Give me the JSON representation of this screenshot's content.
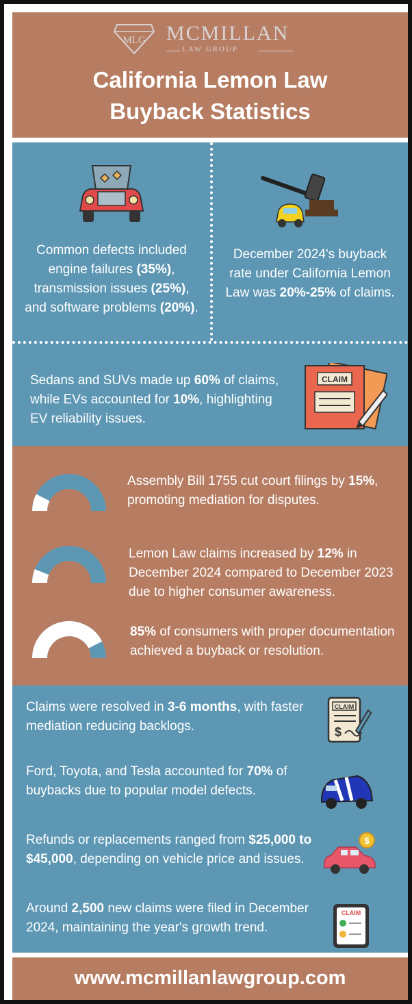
{
  "brand": {
    "monogram": "MLG",
    "name": "MCMILLAN",
    "tagline": "LAW GROUP"
  },
  "title": {
    "line1": "California Lemon Law",
    "line2": "Buyback Statistics"
  },
  "defects": {
    "pre": "Common defects included engine failures ",
    "engine": "(35%)",
    "mid1": ", transmission issues ",
    "transmission": "(25%)",
    "mid2": ", and software problems ",
    "software": "(20%)",
    "post": "."
  },
  "buyback": {
    "pre": "December 2024's buyback rate under California Lemon Law was ",
    "rate": "20%-25%",
    "post": " of claims."
  },
  "vehicles": {
    "pre": "Sedans and SUVs made up ",
    "sedans": "60%",
    "mid": " of claims, while EVs accounted for ",
    "evs": "10%",
    "post": ", highlighting EV reliability issues.",
    "icon_label": "CLAIM"
  },
  "gauges": [
    {
      "pre": "Assembly Bill 1755 cut court filings by ",
      "value": "15%",
      "post": ", promoting mediation for disputes.",
      "fraction": 0.15
    },
    {
      "pre": "Lemon Law claims increased by ",
      "value": "12%",
      "post": " in December 2024 compared to December 2023 due to higher consumer awareness.",
      "fraction": 0.12
    },
    {
      "pre": "",
      "value": "85%",
      "post": " of consumers with proper documentation achieved a buyback or resolution.",
      "fraction": 0.85
    }
  ],
  "facts": [
    {
      "pre": "Claims were resolved in ",
      "value": "3-6 months",
      "post": ", with faster mediation reducing backlogs.",
      "icon": "claim-document-icon",
      "icon_label": "CLAIM"
    },
    {
      "pre": "Ford, Toyota, and Tesla accounted for ",
      "value": "70%",
      "post": " of buybacks due to popular model defects.",
      "icon": "sports-car-icon"
    },
    {
      "pre": "Refunds or replacements ranged from ",
      "value": "$25,000 to $45,000",
      "post": ", depending on vehicle price and issues.",
      "icon": "car-money-icon",
      "icon_label": "$"
    },
    {
      "pre": "Around ",
      "value": "2,500",
      "post": " new claims were filed in December 2024, maintaining the year's growth trend.",
      "icon": "claim-tablet-icon",
      "icon_label": "CLAIM"
    }
  ],
  "footer": {
    "url": "www.mcmillanlawgroup.com"
  },
  "colors": {
    "brown": "#b77d63",
    "blue": "#5d97b4",
    "text": "#ffffff"
  }
}
